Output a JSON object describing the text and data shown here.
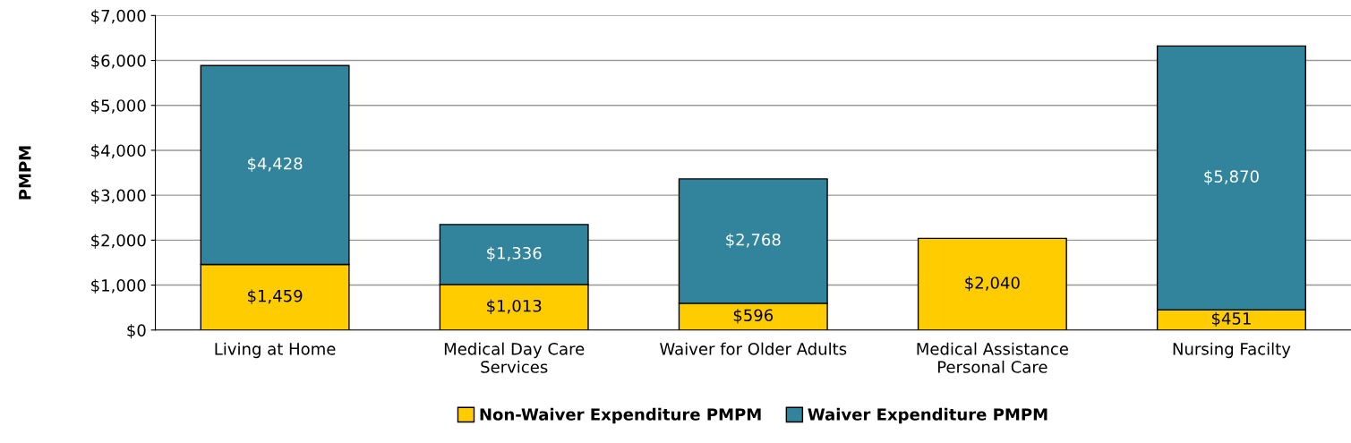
{
  "chart_data": {
    "type": "bar",
    "stacked": true,
    "ylabel": "PMPM",
    "categories": [
      "Living at Home",
      "Medical Day Care\nServices",
      "Waiver for Older Adults",
      "Medical Assistance\nPersonal Care",
      "Nursing Facilty"
    ],
    "series": [
      {
        "name": "Non-Waiver Expenditure PMPM",
        "color": "#ffcc00",
        "values": [
          1459,
          1013,
          596,
          2040,
          451
        ],
        "value_labels": [
          "$1,459",
          "$1,013",
          "$596",
          "$2,040",
          "$451"
        ]
      },
      {
        "name": "Waiver Expenditure PMPM",
        "color": "#31849b",
        "values": [
          4428,
          1336,
          2768,
          null,
          5870
        ],
        "value_labels": [
          "$4,428",
          "$1,336",
          "$2,768",
          null,
          "$5,870"
        ]
      }
    ],
    "ylim": [
      0,
      7000
    ],
    "yticks": [
      {
        "value": 0,
        "label": "$0"
      },
      {
        "value": 1000,
        "label": "$1,000"
      },
      {
        "value": 2000,
        "label": "$2,000"
      },
      {
        "value": 3000,
        "label": "$3,000"
      },
      {
        "value": 4000,
        "label": "$4,000"
      },
      {
        "value": 5000,
        "label": "$5,000"
      },
      {
        "value": 6000,
        "label": "$6,000"
      },
      {
        "value": 7000,
        "label": "$7,000"
      }
    ],
    "grid": "y",
    "legend": "bottom"
  }
}
